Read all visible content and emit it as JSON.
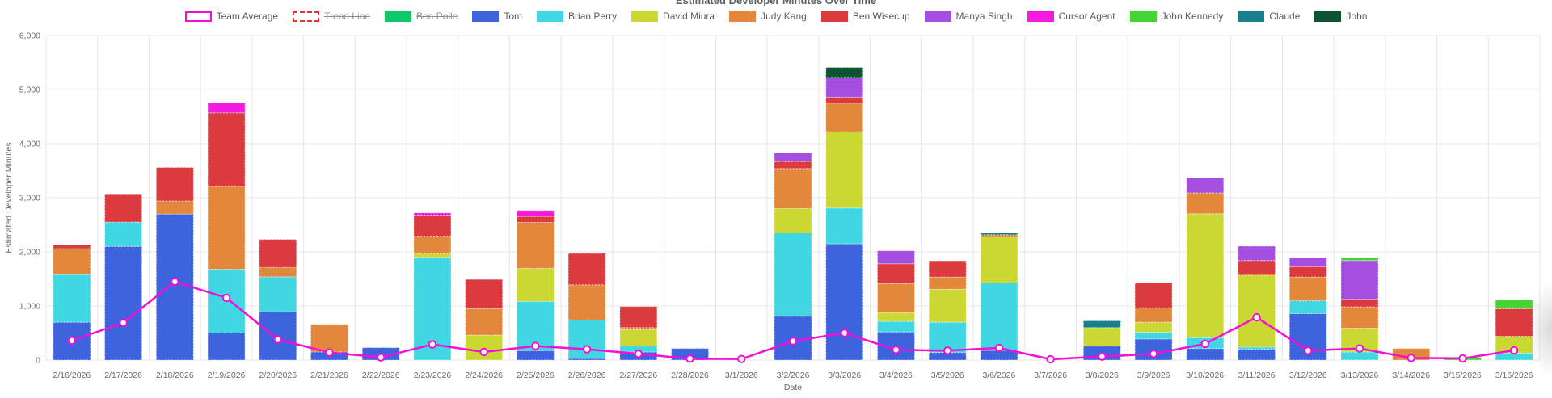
{
  "title": "Estimated Developer Minutes Over Time",
  "legend": {
    "items": [
      {
        "label": "Team Average",
        "slug": "team-average",
        "swatch": "outline-solid",
        "color": "#f50dd8",
        "struck": false
      },
      {
        "label": "Trend Line",
        "slug": "trend-line",
        "swatch": "outline-dashed",
        "color": "#e8312f",
        "struck": true
      },
      {
        "label": "Ben Poile",
        "slug": "ben-poile",
        "swatch": "fill",
        "color": "#0fc968",
        "struck": true
      },
      {
        "label": "Tom",
        "slug": "tom",
        "swatch": "fill",
        "color": "#3d63dd",
        "struck": false
      },
      {
        "label": "Brian Perry",
        "slug": "brian-perry",
        "swatch": "fill",
        "color": "#40d6e2",
        "struck": false
      },
      {
        "label": "David Miura",
        "slug": "david-miura",
        "swatch": "fill",
        "color": "#cbd732",
        "struck": false
      },
      {
        "label": "Judy Kang",
        "slug": "judy-kang",
        "swatch": "fill",
        "color": "#e2873c",
        "struck": false
      },
      {
        "label": "Ben Wisecup",
        "slug": "ben-wisecup",
        "swatch": "fill",
        "color": "#db3b3f",
        "struck": false
      },
      {
        "label": "Manya Singh",
        "slug": "manya-singh",
        "swatch": "fill",
        "color": "#a44fe0",
        "struck": false
      },
      {
        "label": "Cursor Agent",
        "slug": "cursor-agent",
        "swatch": "fill",
        "color": "#f41adf",
        "struck": false
      },
      {
        "label": "John Kennedy",
        "slug": "john-kennedy",
        "swatch": "fill",
        "color": "#46d434",
        "struck": false
      },
      {
        "label": "Claude",
        "slug": "claude",
        "swatch": "fill",
        "color": "#17808c",
        "struck": false
      },
      {
        "label": "John",
        "slug": "john",
        "swatch": "fill",
        "color": "#0e5434",
        "struck": false
      }
    ]
  },
  "chart_data": {
    "type": "bar",
    "subtype": "stacked-bar-with-line",
    "title": "Estimated Developer Minutes Over Time",
    "xlabel": "Date",
    "ylabel": "Estimated Developer Minutes",
    "ylim": [
      0,
      6000
    ],
    "ytick_labels": [
      "0",
      "1,000",
      "2,000",
      "3,000",
      "4,000",
      "5,000",
      "6,000"
    ],
    "grid": true,
    "legend_position": "top",
    "categories": [
      "2/16/2026",
      "2/17/2026",
      "2/18/2026",
      "2/19/2026",
      "2/20/2026",
      "2/21/2026",
      "2/22/2026",
      "2/23/2026",
      "2/24/2026",
      "2/25/2026",
      "2/26/2026",
      "2/27/2026",
      "2/28/2026",
      "3/1/2026",
      "3/2/2026",
      "3/3/2026",
      "3/4/2026",
      "3/5/2026",
      "3/6/2026",
      "3/7/2026",
      "3/8/2026",
      "3/9/2026",
      "3/10/2026",
      "3/11/2026",
      "3/12/2026",
      "3/13/2026",
      "3/14/2026",
      "3/15/2026",
      "3/16/2026"
    ],
    "series": [
      {
        "name": "Tom",
        "color": "#3d63dd",
        "values": [
          700,
          2100,
          2700,
          500,
          890,
          150,
          230,
          0,
          0,
          175,
          30,
          150,
          215,
          0,
          810,
          2150,
          520,
          140,
          180,
          0,
          260,
          390,
          215,
          200,
          860,
          0,
          0,
          0,
          0
        ]
      },
      {
        "name": "Brian Perry",
        "color": "#40d6e2",
        "values": [
          880,
          450,
          0,
          1180,
          650,
          0,
          0,
          1900,
          0,
          910,
          710,
          110,
          0,
          0,
          1540,
          660,
          195,
          560,
          1245,
          0,
          0,
          125,
          200,
          40,
          235,
          150,
          0,
          0,
          130
        ]
      },
      {
        "name": "David Miura",
        "color": "#cbd732",
        "values": [
          0,
          0,
          0,
          0,
          0,
          0,
          0,
          60,
          460,
          610,
          0,
          300,
          0,
          0,
          450,
          1410,
          160,
          610,
          855,
          0,
          340,
          185,
          2290,
          1330,
          0,
          440,
          0,
          0,
          310
        ]
      },
      {
        "name": "Judy Kang",
        "color": "#e2873c",
        "values": [
          480,
          0,
          240,
          1530,
          170,
          510,
          0,
          330,
          490,
          850,
          650,
          40,
          0,
          0,
          740,
          530,
          540,
          225,
          35,
          0,
          0,
          265,
          385,
          0,
          440,
          395,
          215,
          0,
          0
        ]
      },
      {
        "name": "Ben Wisecup",
        "color": "#db3b3f",
        "values": [
          70,
          520,
          620,
          1360,
          520,
          0,
          0,
          390,
          540,
          110,
          580,
          390,
          0,
          0,
          130,
          110,
          365,
          300,
          0,
          0,
          0,
          465,
          0,
          270,
          190,
          140,
          0,
          0,
          510
        ]
      },
      {
        "name": "Manya Singh",
        "color": "#a44fe0",
        "values": [
          0,
          0,
          0,
          0,
          0,
          0,
          0,
          0,
          0,
          0,
          0,
          0,
          0,
          0,
          160,
          365,
          240,
          0,
          0,
          0,
          0,
          0,
          275,
          265,
          170,
          715,
          0,
          0,
          0
        ]
      },
      {
        "name": "Cursor Agent",
        "color": "#f41adf",
        "values": [
          0,
          0,
          0,
          190,
          0,
          0,
          0,
          40,
          0,
          110,
          0,
          0,
          0,
          0,
          0,
          0,
          0,
          0,
          0,
          0,
          0,
          0,
          0,
          0,
          0,
          0,
          0,
          0,
          0
        ]
      },
      {
        "name": "John Kennedy",
        "color": "#46d434",
        "values": [
          0,
          0,
          0,
          0,
          0,
          0,
          0,
          0,
          0,
          0,
          0,
          0,
          0,
          0,
          0,
          0,
          0,
          0,
          0,
          0,
          0,
          0,
          0,
          0,
          0,
          50,
          0,
          55,
          165
        ]
      },
      {
        "name": "Claude",
        "color": "#17808c",
        "values": [
          0,
          0,
          0,
          0,
          0,
          0,
          0,
          0,
          0,
          0,
          0,
          0,
          0,
          0,
          0,
          0,
          0,
          0,
          35,
          0,
          125,
          0,
          0,
          0,
          0,
          0,
          0,
          0,
          0
        ]
      },
      {
        "name": "John",
        "color": "#0e5434",
        "values": [
          0,
          0,
          0,
          0,
          0,
          0,
          0,
          0,
          0,
          0,
          0,
          0,
          0,
          0,
          0,
          185,
          0,
          0,
          0,
          0,
          0,
          0,
          0,
          0,
          0,
          0,
          0,
          0,
          0
        ]
      }
    ],
    "line_series": {
      "name": "Team Average",
      "color": "#f50dd8",
      "values": [
        360,
        690,
        1450,
        1150,
        380,
        140,
        50,
        290,
        150,
        260,
        200,
        115,
        25,
        20,
        350,
        500,
        190,
        175,
        225,
        15,
        65,
        115,
        300,
        790,
        175,
        215,
        40,
        30,
        180
      ]
    },
    "hidden_series": [
      "Trend Line",
      "Ben Poile"
    ]
  }
}
